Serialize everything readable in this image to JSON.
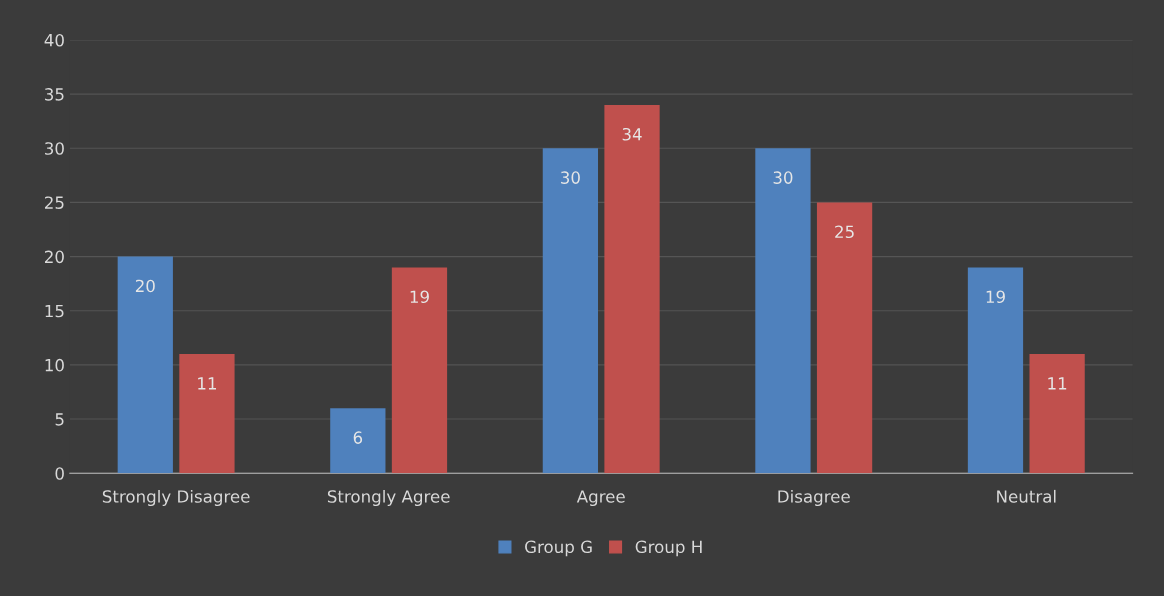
{
  "chart_data": {
    "type": "bar",
    "categories": [
      "Strongly Disagree",
      "Strongly Agree",
      "Agree",
      "Disagree",
      "Neutral"
    ],
    "series": [
      {
        "name": "Group G",
        "color": "#4f81bd",
        "values": [
          20,
          6,
          30,
          30,
          19
        ]
      },
      {
        "name": "Group H",
        "color": "#c0504d",
        "values": [
          11,
          19,
          34,
          25,
          11
        ]
      }
    ],
    "ylim": [
      0,
      40
    ],
    "yticks": [
      0,
      5,
      10,
      15,
      20,
      25,
      30,
      35,
      40
    ],
    "grid": "y",
    "legend": "bottom",
    "data_labels": true
  }
}
